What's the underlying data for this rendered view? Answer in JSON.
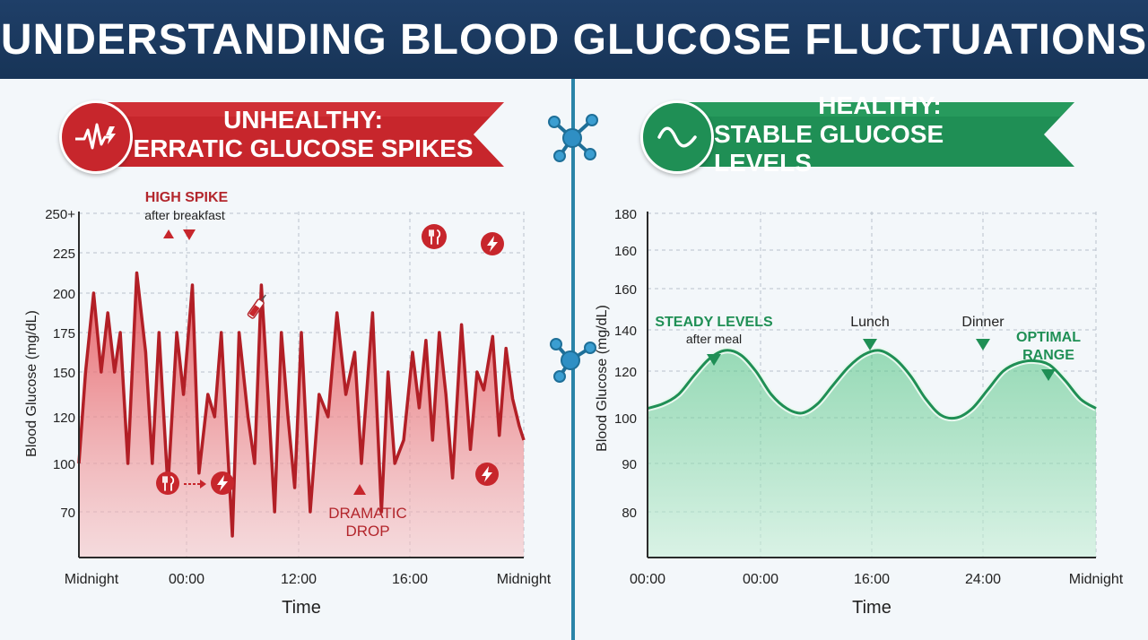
{
  "title": "UNDERSTANDING BLOOD GLUCOSE FLUCTUATIONS",
  "colors": {
    "header": "#1f3f68",
    "unhealthy": "#c7262c",
    "unhealthy_fill": "#f3a9ac",
    "healthy": "#1f8f55",
    "healthy_fill": "#9fdcb7",
    "divider": "#2a84a8"
  },
  "unhealthy_panel": {
    "banner_line1": "UNHEALTHY:",
    "banner_line2": "ERRATIC GLUCOSE SPIKES",
    "icon": "heartbeat-icon",
    "ylabel": "Blood Glucose (mg/dL)",
    "xlabel": "Time",
    "y_ticks": [
      "250+",
      "225",
      "200",
      "175",
      "150",
      "120",
      "100",
      "70"
    ],
    "x_ticks": [
      "Midnight",
      "00:00",
      "12:00",
      "16:00",
      "Midnight"
    ],
    "annotations": {
      "spike_title": "HIGH SPIKE",
      "spike_sub": "after breakfast",
      "drop_line1": "DRAMATIC",
      "drop_line2": "DROP"
    },
    "icons": [
      "fork-knife-icon",
      "lightning-icon",
      "syringe-icon"
    ]
  },
  "healthy_panel": {
    "banner_line1": "HEALTHY:",
    "banner_line2": "STABLE GLUCOSE LEVELS",
    "icon": "sine-wave-icon",
    "ylabel": "Blood Glucose (mg/dL)",
    "xlabel": "Time",
    "y_ticks": [
      "180",
      "160",
      "160",
      "140",
      "120",
      "100",
      "90",
      "80"
    ],
    "x_ticks": [
      "00:00",
      "00:00",
      "16:00",
      "24:00",
      "Midnight"
    ],
    "annotations": {
      "steady_title": "STEADY LEVELS",
      "steady_sub": "after meal",
      "lunch": "Lunch",
      "dinner": "Dinner",
      "optimal_line1": "OPTIMAL",
      "optimal_line2": "RANGE"
    }
  },
  "chart_data": [
    {
      "type": "area",
      "title": "UNHEALTHY: ERRATIC GLUCOSE SPIKES",
      "ylabel": "Blood Glucose (mg/dL)",
      "xlabel": "Time",
      "y_ticks": [
        "250+",
        "225",
        "200",
        "175",
        "150",
        "120",
        "100",
        "70"
      ],
      "x_ticks": [
        "Midnight",
        "00:00",
        "12:00",
        "16:00",
        "Midnight"
      ],
      "x": [
        0,
        1.5,
        3.3,
        5,
        6.5,
        8,
        9.3,
        11,
        13,
        15,
        16.5,
        18,
        20,
        22,
        23.5,
        25.5,
        27,
        29,
        30.5,
        32,
        34.5,
        36,
        38,
        39.5,
        41,
        42.5,
        44,
        45.5,
        47,
        48.5,
        50,
        52,
        54,
        56,
        58,
        60,
        62,
        63.5,
        66,
        68,
        69.5,
        71,
        73,
        75,
        76.5,
        78,
        79.5,
        81,
        82.5,
        84,
        86,
        88,
        89.5,
        91,
        93,
        94.5,
        96,
        97.5,
        99,
        100
      ],
      "y_level": [
        6,
        4,
        2,
        4,
        2.5,
        4,
        3,
        6,
        1.5,
        3.5,
        6,
        3,
        6.5,
        3,
        4.5,
        1.8,
        6.2,
        4.5,
        5,
        3,
        7.5,
        3,
        5,
        6,
        1.8,
        4.5,
        7,
        3,
        5,
        6.5,
        3,
        7,
        4.5,
        5,
        2.5,
        4.5,
        3.5,
        6,
        2.5,
        7,
        4,
        6,
        5.5,
        3.5,
        4.8,
        3.2,
        5.5,
        3,
        4.5,
        6.3,
        2.8,
        5.7,
        4,
        4.4,
        3.1,
        5.4,
        3.4,
        4.6,
        5.2,
        5.5
      ],
      "grid": true
    },
    {
      "type": "area",
      "title": "HEALTHY: STABLE GLUCOSE LEVELS",
      "ylabel": "Blood Glucose (mg/dL)",
      "xlabel": "Time",
      "y_ticks": [
        "180",
        "160",
        "160",
        "140",
        "120",
        "100",
        "90",
        "80"
      ],
      "x_ticks": [
        "00:00",
        "00:00",
        "16:00",
        "24:00",
        "Midnight"
      ],
      "series": [
        {
          "values_level": [
            4.8,
            4.7,
            4.5,
            4.1,
            3.7,
            3.5,
            3.6,
            4.0,
            4.5,
            4.8,
            4.9,
            4.7,
            4.3,
            3.9,
            3.6,
            3.5,
            3.7,
            4.1,
            4.6,
            4.95,
            5.0,
            4.8,
            4.4,
            4.0,
            3.8,
            3.75,
            3.85,
            4.2,
            4.6,
            4.8
          ]
        }
      ],
      "grid": true
    }
  ]
}
